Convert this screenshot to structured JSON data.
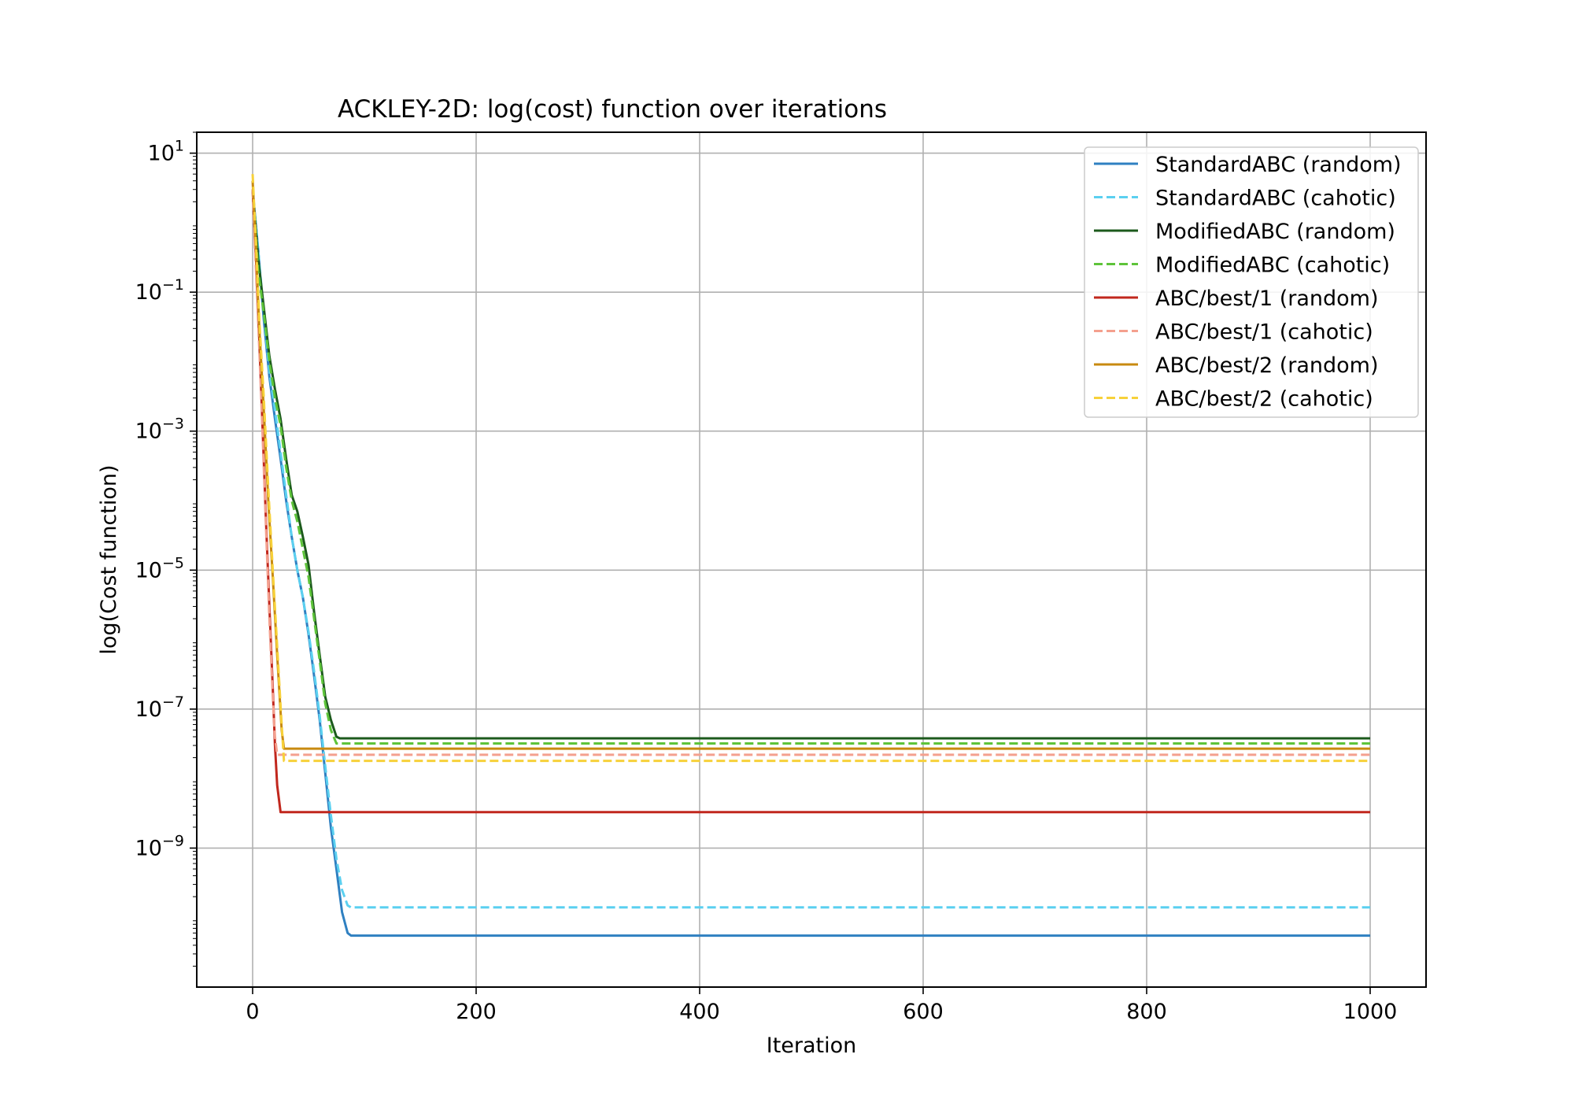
{
  "chart_data": {
    "type": "line",
    "title": "ACKLEY-2D: log(cost) function over iterations",
    "xlabel": "Iteration",
    "ylabel": "log(Cost function)",
    "xlim": [
      -50,
      1050
    ],
    "ylim": [
      1e-11,
      20.0
    ],
    "yscale": "log",
    "grid": true,
    "legend_position": "top-right",
    "x_ticks": [
      0,
      200,
      400,
      600,
      800,
      1000
    ],
    "x_tick_labels": [
      "0",
      "200",
      "400",
      "600",
      "800",
      "1000"
    ],
    "y_ticks": [
      1e-09,
      1e-07,
      1e-05,
      0.001,
      0.1,
      10.0
    ],
    "y_tick_labels": [
      {
        "base": "10",
        "exp": "−9"
      },
      {
        "base": "10",
        "exp": "−7"
      },
      {
        "base": "10",
        "exp": "−5"
      },
      {
        "base": "10",
        "exp": "−3"
      },
      {
        "base": "10",
        "exp": "−1"
      },
      {
        "base": "10",
        "exp": "1"
      }
    ],
    "series": [
      {
        "name": "StandardABC (random)",
        "color": "#2f80c1",
        "dash": false,
        "x": [
          0,
          5,
          10,
          15,
          20,
          25,
          30,
          35,
          40,
          45,
          50,
          55,
          60,
          65,
          70,
          75,
          80,
          85,
          88,
          90,
          1000
        ],
        "y": [
          3,
          0.4,
          0.04,
          0.006,
          0.0015,
          0.0004,
          0.0001,
          3e-05,
          1e-05,
          4e-06,
          1.2e-06,
          3e-07,
          7e-08,
          1.2e-08,
          2e-09,
          5e-10,
          1.2e-10,
          6e-11,
          5.5e-11,
          5.5e-11,
          5.5e-11
        ]
      },
      {
        "name": "StandardABC (cahotic)",
        "color": "#5bd0f0",
        "dash": true,
        "x": [
          0,
          5,
          10,
          15,
          20,
          25,
          30,
          35,
          40,
          45,
          50,
          55,
          60,
          65,
          70,
          75,
          80,
          85,
          88,
          1000
        ],
        "y": [
          3,
          0.4,
          0.05,
          0.007,
          0.002,
          0.0005,
          0.00012,
          3e-05,
          1e-05,
          4e-06,
          1.3e-06,
          3.5e-07,
          8e-08,
          1.5e-08,
          3e-09,
          7e-10,
          2.5e-10,
          1.5e-10,
          1.4e-10,
          1.4e-10
        ]
      },
      {
        "name": "ModifiedABC (random)",
        "color": "#1c5a1c",
        "dash": false,
        "x": [
          0,
          5,
          10,
          15,
          20,
          25,
          30,
          35,
          40,
          45,
          50,
          55,
          60,
          65,
          70,
          75,
          78,
          1000
        ],
        "y": [
          3,
          0.3,
          0.06,
          0.012,
          0.004,
          0.0015,
          0.0004,
          0.00012,
          7e-05,
          3e-05,
          1.2e-05,
          2.5e-06,
          6e-07,
          1.5e-07,
          7e-08,
          4e-08,
          3.8e-08,
          3.8e-08
        ]
      },
      {
        "name": "ModifiedABC (cahotic)",
        "color": "#5ec43a",
        "dash": true,
        "x": [
          0,
          5,
          10,
          15,
          20,
          25,
          30,
          35,
          40,
          45,
          50,
          55,
          60,
          65,
          70,
          75,
          1000
        ],
        "y": [
          3,
          0.2,
          0.05,
          0.01,
          0.003,
          0.0012,
          0.0003,
          0.0001,
          5e-05,
          2e-05,
          8e-06,
          2e-06,
          5e-07,
          1.2e-07,
          5e-08,
          3.2e-08,
          3.2e-08
        ]
      },
      {
        "name": "ABC/best/1 (random)",
        "color": "#c1271d",
        "dash": false,
        "x": [
          0,
          3,
          6,
          9,
          12,
          15,
          18,
          20,
          22,
          25,
          1000
        ],
        "y": [
          3,
          0.3,
          0.02,
          0.001,
          5e-05,
          3e-06,
          2e-07,
          3e-08,
          8e-09,
          3.3e-09,
          3.3e-09
        ]
      },
      {
        "name": "ABC/best/1 (cahotic)",
        "color": "#f4a08e",
        "dash": true,
        "x": [
          0,
          3,
          6,
          9,
          12,
          15,
          18,
          20,
          22,
          1000
        ],
        "y": [
          3,
          0.2,
          0.015,
          0.0008,
          4e-05,
          2e-06,
          1.5e-07,
          4e-08,
          2.2e-08,
          2.2e-08
        ]
      },
      {
        "name": "ABC/best/2 (random)",
        "color": "#c88a10",
        "dash": false,
        "x": [
          0,
          3,
          6,
          10,
          14,
          18,
          22,
          26,
          28,
          1000
        ],
        "y": [
          4,
          0.4,
          0.03,
          0.002,
          0.0001,
          8e-06,
          6e-07,
          5e-08,
          2.7e-08,
          2.7e-08
        ]
      },
      {
        "name": "ABC/best/2 (cahotic)",
        "color": "#f7d13a",
        "dash": true,
        "x": [
          0,
          3,
          6,
          10,
          14,
          18,
          22,
          26,
          28,
          1000
        ],
        "y": [
          5,
          0.5,
          0.04,
          0.003,
          0.00015,
          1e-05,
          8e-07,
          6e-08,
          1.8e-08,
          1.8e-08
        ]
      }
    ]
  }
}
